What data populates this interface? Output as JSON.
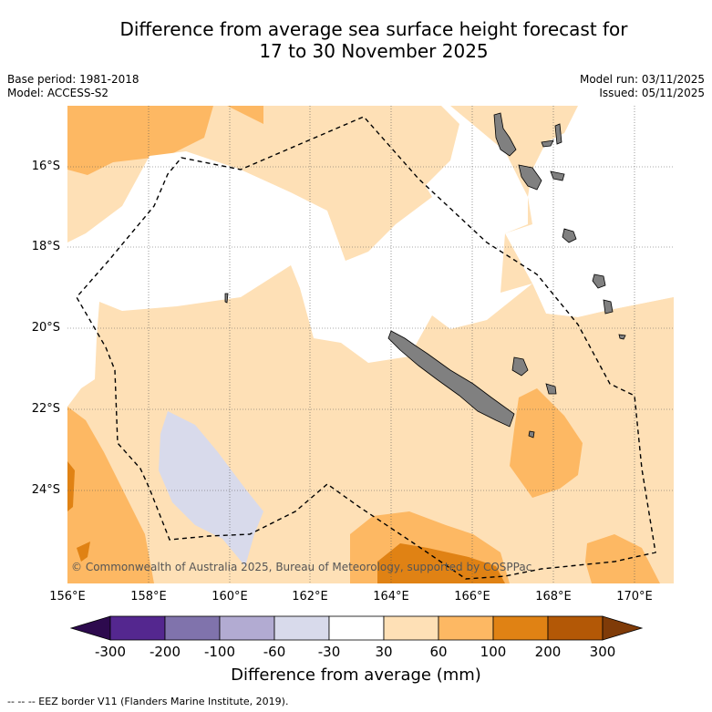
{
  "title_line1": "Difference from average sea surface height forecast for",
  "title_line2": "17 to 30 November 2025",
  "base_period": "Base period: 1981-2018",
  "model": "Model: ACCESS-S2",
  "model_run": "Model run: 03/11/2025",
  "issued": "Issued: 05/11/2025",
  "lat_labels": [
    "16°S",
    "18°S",
    "20°S",
    "22°S",
    "24°S"
  ],
  "lon_labels": [
    "156°E",
    "158°E",
    "160°E",
    "162°E",
    "164°E",
    "166°E",
    "168°E",
    "170°E"
  ],
  "copyright": "© Commonwealth of Australia 2025, Bureau of Meteorology, supported by COSPPac",
  "colorbar": {
    "ticks": [
      "-300",
      "-200",
      "-100",
      "-60",
      "-30",
      "30",
      "60",
      "100",
      "200",
      "300"
    ],
    "colors": [
      "#2d0a4e",
      "#54278f",
      "#8073ac",
      "#b2abd2",
      "#d8daeb",
      "#ffffff",
      "#fee0b6",
      "#fdb863",
      "#e08214",
      "#b35806",
      "#7f3b08"
    ],
    "title": "Difference from average (mm)"
  },
  "footer": "--  --  -- EEZ border V11 (Flanders Marine Institute, 2019)."
}
